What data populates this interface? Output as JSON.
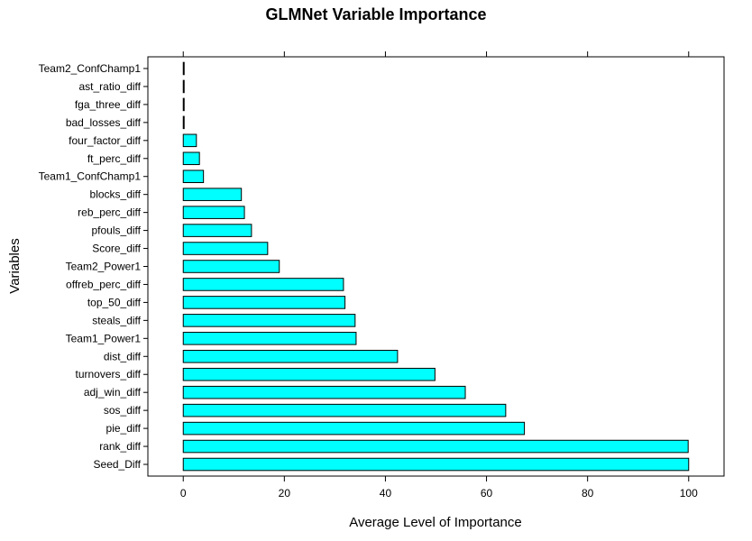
{
  "chart_data": {
    "type": "bar",
    "orientation": "horizontal",
    "title": "GLMNet Variable Importance",
    "xlabel": "Average Level of Importance",
    "ylabel": "Variables",
    "xlim": [
      -7,
      107
    ],
    "xticks": [
      0,
      20,
      40,
      60,
      80,
      100
    ],
    "bar_color": "#00FFFF",
    "bar_edge_color": "#000000",
    "grid": false,
    "categories": [
      "Team2_ConfChamp1",
      "ast_ratio_diff",
      "fga_three_diff",
      "bad_losses_diff",
      "four_factor_diff",
      "ft_perc_diff",
      "Team1_ConfChamp1",
      "blocks_diff",
      "reb_perc_diff",
      "pfouls_diff",
      "Score_diff",
      "Team2_Power1",
      "offreb_perc_diff",
      "top_50_diff",
      "steals_diff",
      "Team1_Power1",
      "dist_diff",
      "turnovers_diff",
      "adj_win_diff",
      "sos_diff",
      "pie_diff",
      "rank_diff",
      "Seed_Diff"
    ],
    "values": [
      0.1,
      0.1,
      0.1,
      0.1,
      2.6,
      3.2,
      4.0,
      11.5,
      12.1,
      13.5,
      16.7,
      19.0,
      31.7,
      32.0,
      34.0,
      34.2,
      42.4,
      49.8,
      55.8,
      63.8,
      67.5,
      99.9,
      100.0
    ]
  }
}
